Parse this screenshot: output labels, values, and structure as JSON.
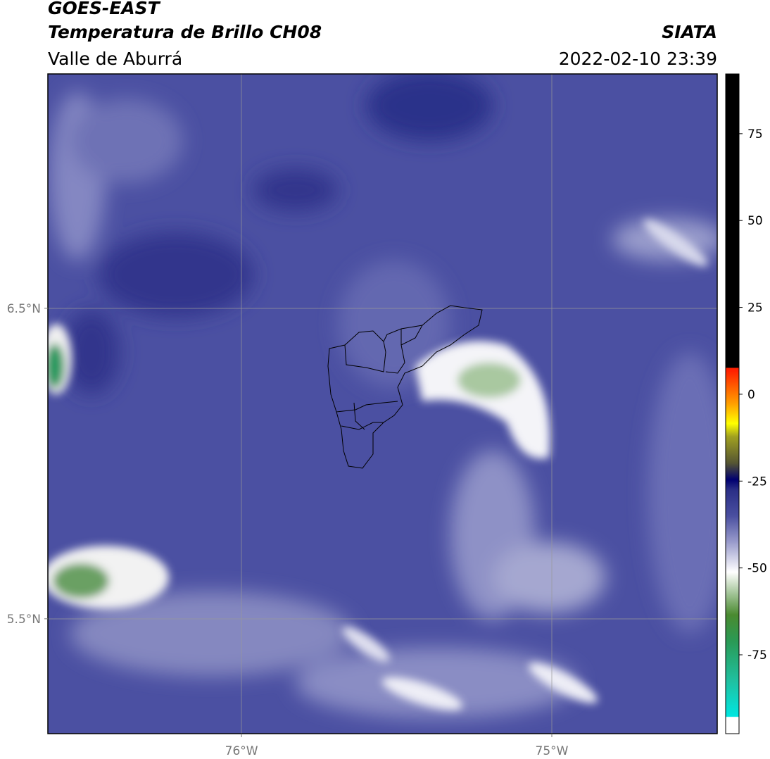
{
  "header": {
    "title": "GOES-EAST",
    "subtitle": "Temperatura de Brillo CH08",
    "region": "Valle de Aburrá",
    "source": "SIATA",
    "datetime": "2022-02-10 23:39"
  },
  "map": {
    "xlim": [
      -76.624,
      -74.467
    ],
    "ylim": [
      5.13,
      7.255
    ],
    "xticks": [
      {
        "value": -76,
        "label": "76°W"
      },
      {
        "value": -75,
        "label": "75°W"
      }
    ],
    "yticks": [
      {
        "value": 6.5,
        "label": "6.5°N"
      },
      {
        "value": 5.5,
        "label": "5.5°N"
      }
    ]
  },
  "colorbar": {
    "ylim": [
      -97.7,
      92.2
    ],
    "yticks": [
      75,
      50,
      25,
      0,
      -25,
      -50,
      -75
    ]
  }
}
